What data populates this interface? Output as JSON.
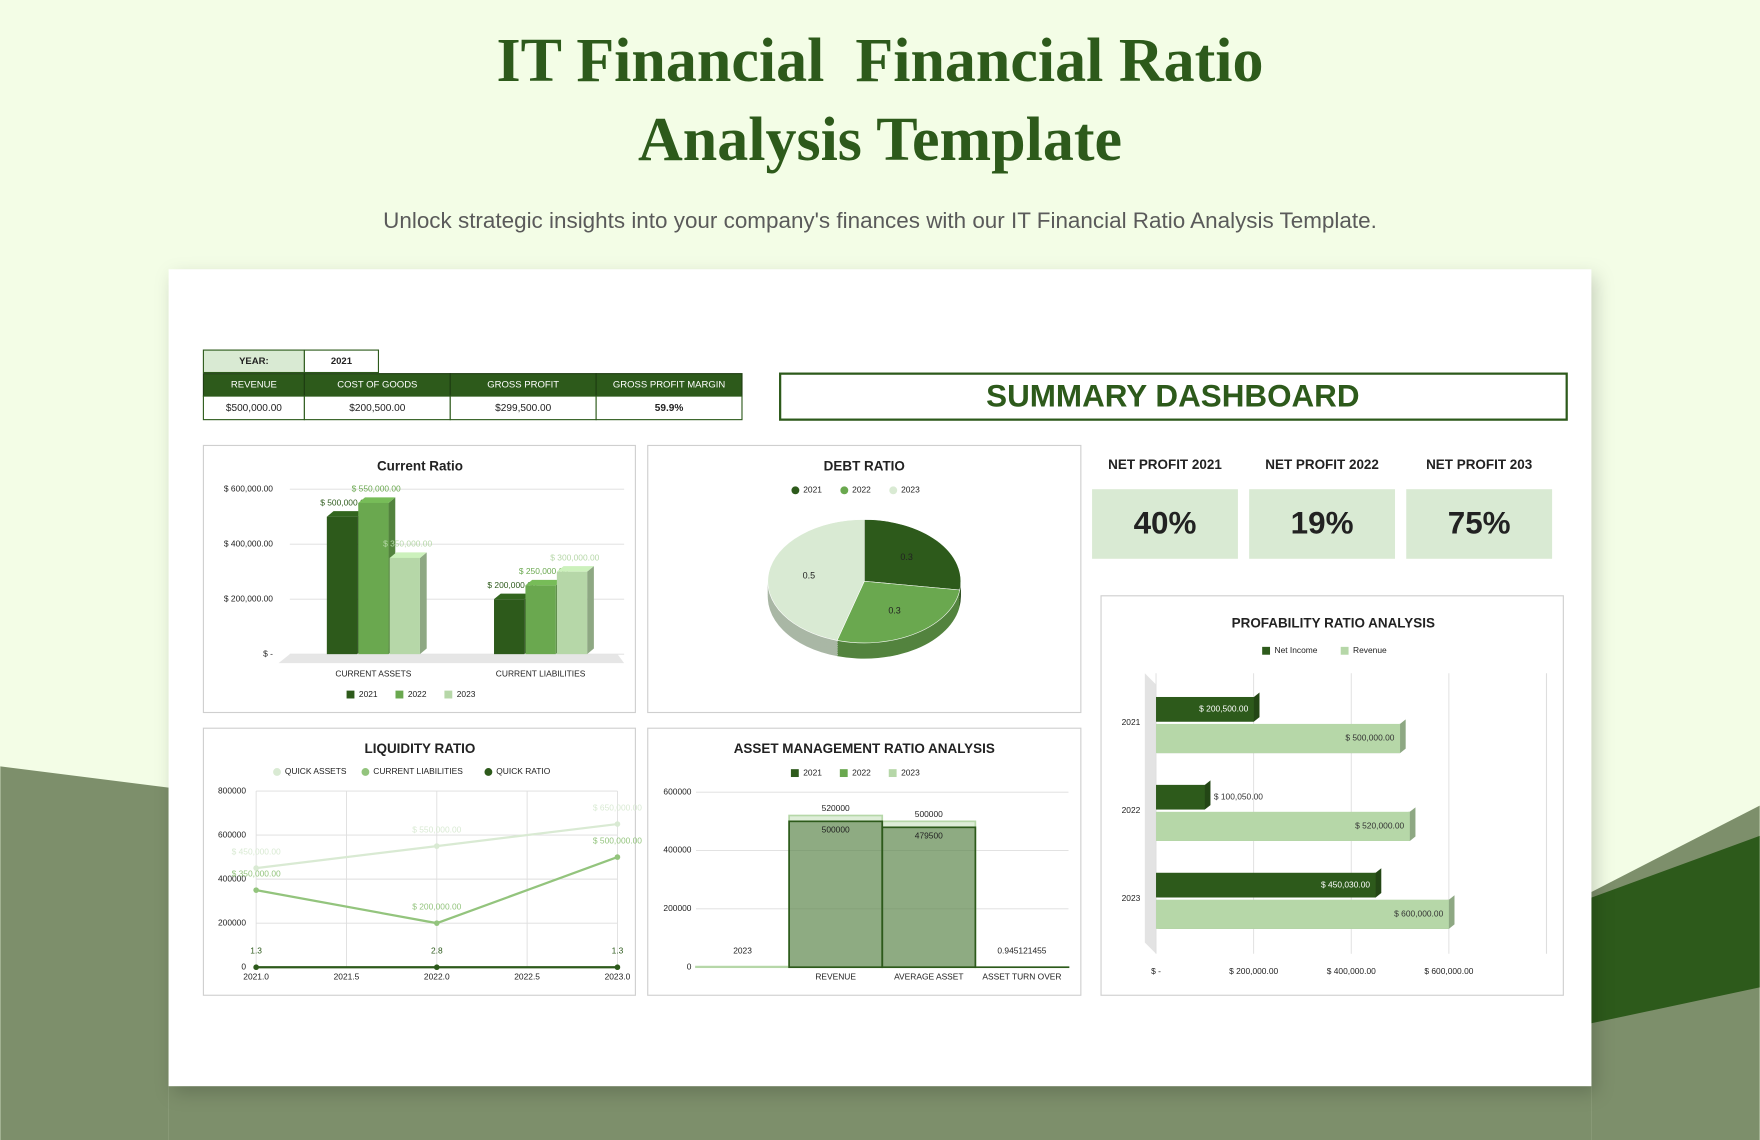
{
  "header": {
    "title": "IT Financial  Financial Ratio Analysis Template",
    "subtitle": "Unlock strategic insights into your company's finances with our IT Financial Ratio Analysis Template."
  },
  "table": {
    "year_label": "YEAR:",
    "year": "2021",
    "columns": [
      "REVENUE",
      "COST OF GOODS",
      "GROSS PROFIT",
      "GROSS PROFIT MARGIN"
    ],
    "rows": [
      [
        "$500,000.00",
        "$200,500.00",
        "$299,500.00",
        "59.9%"
      ]
    ]
  },
  "dashboard_title": "SUMMARY DASHBOARD",
  "kpis": [
    {
      "label": "NET PROFIT 2021",
      "value": "40%"
    },
    {
      "label": "NET PROFIT 2022",
      "value": "19%"
    },
    {
      "label": "NET PROFIT 203",
      "value": "75%"
    }
  ],
  "chart_data": [
    {
      "type": "bar",
      "title": "Current Ratio",
      "categories": [
        "CURRENT ASSETS",
        "CURRENT LIABILITIES"
      ],
      "series": [
        {
          "name": "2021",
          "color": "#2d5a1b",
          "values": [
            500000,
            200000
          ],
          "value_labels": [
            "$ 500,000.00",
            "$ 200,000.00"
          ]
        },
        {
          "name": "2022",
          "color": "#6aa84f",
          "values": [
            550000,
            250000
          ],
          "value_labels": [
            "$ 550,000.00",
            "$ 250,000.00"
          ]
        },
        {
          "name": "2023",
          "color": "#b6d7a8",
          "values": [
            350000,
            300000
          ],
          "value_labels": [
            "$ 350,000.00",
            "$ 300,000.00"
          ]
        }
      ],
      "ylim": [
        0,
        600000
      ],
      "yticks": [
        {
          "value": 0,
          "label": "$ -"
        },
        {
          "value": 200000,
          "label": "$ 200,000.00"
        },
        {
          "value": 400000,
          "label": "$ 400,000.00"
        },
        {
          "value": 600000,
          "label": "$ 600,000.00"
        }
      ],
      "grid": true,
      "legend": "bottom"
    },
    {
      "type": "pie",
      "title": "DEBT RATIO",
      "categories": [
        "2021",
        "2022",
        "2023"
      ],
      "values": [
        0.3,
        0.3,
        0.5
      ],
      "colors": [
        "#2d5a1b",
        "#6aa84f",
        "#d9ead3"
      ],
      "legend": "top"
    },
    {
      "type": "line",
      "title": "LIQUIDITY RATIO",
      "x": [
        2021,
        2022,
        2023
      ],
      "series": [
        {
          "name": "QUICK ASSETS",
          "color": "#d9ead3",
          "values": [
            450000,
            550000,
            650000
          ],
          "value_labels": [
            "$ 450,000.00",
            "$ 550,000.00",
            "$ 650,000.00"
          ]
        },
        {
          "name": "CURRENT LIABILITIES",
          "color": "#93c47d",
          "values": [
            350000,
            200000,
            500000
          ],
          "value_labels": [
            "$ 350,000.00",
            "$ 200,000.00",
            "$ 500,000.00"
          ]
        },
        {
          "name": "QUICK RATIO",
          "color": "#2d5a1b",
          "values": [
            1.3,
            2.8,
            1.3
          ]
        }
      ],
      "xlim": [
        2021,
        2023
      ],
      "xticks": [
        {
          "value": 2021,
          "label": "2021.0"
        },
        {
          "value": 2021.5,
          "label": "2021.5"
        },
        {
          "value": 2022,
          "label": "2022.0"
        },
        {
          "value": 2022.5,
          "label": "2022.5"
        },
        {
          "value": 2023,
          "label": "2023.0"
        }
      ],
      "ylim": [
        0,
        800000
      ],
      "yticks": [
        0,
        200000,
        400000,
        600000,
        800000
      ],
      "grid": true,
      "legend": "top"
    },
    {
      "type": "area",
      "title": "ASSET MANAGEMENT RATIO ANALYSIS",
      "categories": [
        null,
        "REVENUE",
        "AVERAGE ASSET",
        "ASSET TURN OVER"
      ],
      "series": [
        {
          "name": "2021",
          "color": "#2d5a1b",
          "values": [
            null,
            500000,
            479500,
            0.945121455
          ]
        },
        {
          "name": "2022",
          "color": "#6aa84f",
          "values": [
            null,
            null,
            null,
            null
          ]
        },
        {
          "name": "2023",
          "color": "#b6d7a8",
          "values": [
            2023,
            520000,
            500000,
            null
          ]
        }
      ],
      "ylim": [
        0,
        600000
      ],
      "yticks": [
        0,
        200000,
        400000,
        600000
      ],
      "grid": true,
      "legend": "top"
    },
    {
      "type": "hbar",
      "title": "PROFABILITY RATIO ANALYSIS",
      "categories": [
        "2021",
        "2022",
        "2023"
      ],
      "series": [
        {
          "name": "Net Income",
          "color": "#2d5a1b",
          "values": [
            200500,
            100050,
            450030
          ],
          "value_labels": [
            "$ 200,500.00",
            "$ 100,050.00",
            "$ 450,030.00"
          ]
        },
        {
          "name": "Revenue",
          "color": "#b6d7a8",
          "values": [
            500000,
            520000,
            600000
          ],
          "value_labels": [
            "$ 500,000.00",
            "$ 520,000.00",
            "$ 600,000.00"
          ]
        }
      ],
      "xlim": [
        0,
        800000
      ],
      "xticks": [
        {
          "value": 0,
          "label": "$ -"
        },
        {
          "value": 200000,
          "label": "$ 200,000.00"
        },
        {
          "value": 400000,
          "label": "$ 400,000.00"
        },
        {
          "value": 600000,
          "label": "$ 600,000.00"
        }
      ],
      "grid": true,
      "legend": "top"
    }
  ]
}
